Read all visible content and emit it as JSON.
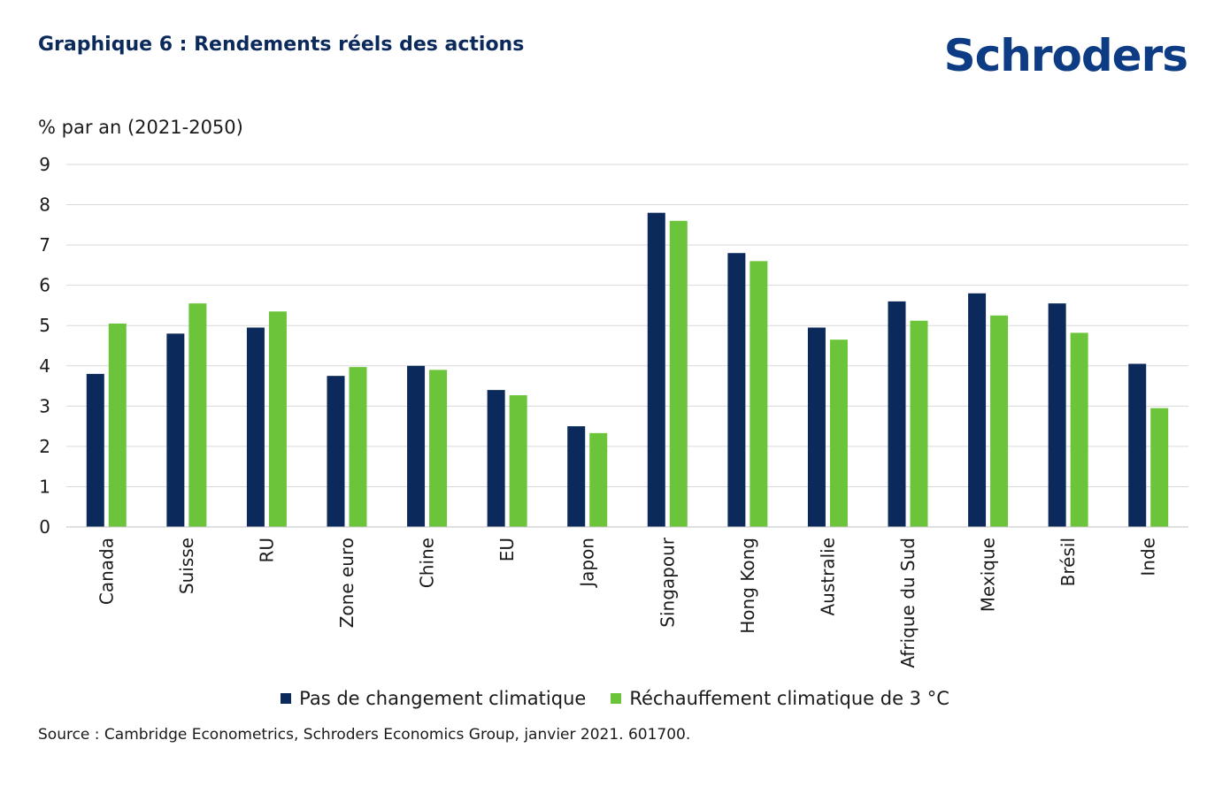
{
  "header": {
    "title": "Graphique 6 : Rendements réels des actions",
    "logo_text": "Schroders"
  },
  "footer": {
    "source": "Source :  Cambridge Econometrics, Schroders Economics Group, janvier 2021. 601700."
  },
  "colors": {
    "series_1": "#0b2a5b",
    "series_2": "#6cc43a",
    "grid": "#d9d9d9",
    "axis": "#bfbfbf"
  },
  "chart_data": {
    "type": "bar",
    "title": "Graphique 6 : Rendements réels des actions",
    "ylabel": "% par an (2021-2050)",
    "xlabel": "",
    "ylim": [
      0,
      9
    ],
    "yticks": [
      0,
      1,
      2,
      3,
      4,
      5,
      6,
      7,
      8,
      9
    ],
    "grid": true,
    "legend_position": "bottom",
    "categories": [
      "Canada",
      "Suisse",
      "RU",
      "Zone euro",
      "Chine",
      "EU",
      "Japon",
      "Singapour",
      "Hong Kong",
      "Australie",
      "Afrique du Sud",
      "Mexique",
      "Brésil",
      "Inde"
    ],
    "series": [
      {
        "name": "Pas de changement climatique",
        "color": "#0b2a5b",
        "values": [
          3.8,
          4.8,
          4.95,
          3.75,
          4.0,
          3.4,
          2.5,
          7.8,
          6.8,
          4.95,
          5.6,
          5.8,
          5.55,
          4.05
        ]
      },
      {
        "name": "Réchauffement climatique de 3 °C",
        "color": "#6cc43a",
        "values": [
          5.05,
          5.55,
          5.35,
          3.97,
          3.9,
          3.27,
          2.33,
          7.6,
          6.6,
          4.65,
          5.12,
          5.25,
          4.82,
          2.95
        ]
      }
    ]
  }
}
